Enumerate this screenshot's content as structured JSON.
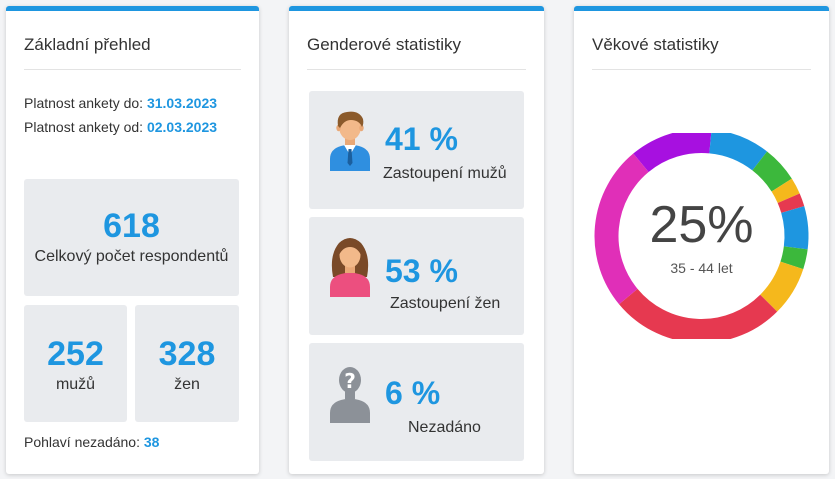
{
  "overview": {
    "title": "Základní přehled",
    "valid_to_label": "Platnost ankety do: ",
    "valid_to_value": "31.03.2023",
    "valid_from_label": "Platnost ankety od: ",
    "valid_from_value": "02.03.2023",
    "total_value": "618",
    "total_label": "Celkový počet respondentů",
    "men_value": "252",
    "men_label": "mužů",
    "women_value": "328",
    "women_label": "žen",
    "unspecified_label": "Pohlaví nezadáno: ",
    "unspecified_value": "38"
  },
  "gender": {
    "title": "Genderové statistiky",
    "men_pct": "41 %",
    "men_label": "Zastoupení mužů",
    "women_pct": "53 %",
    "women_label": "Zastoupení žen",
    "none_pct": "6 %",
    "none_label": "Nezadáno",
    "icons": [
      "man-avatar-icon",
      "woman-avatar-icon",
      "unknown-person-icon"
    ]
  },
  "age": {
    "title": "Věkové statistiky",
    "highlight_pct": "25%",
    "highlight_label": "35 - 44 let",
    "segments": [
      {
        "color": "#a710e0",
        "fraction": 0.125
      },
      {
        "color": "#1e96e0",
        "fraction": 0.09
      },
      {
        "color": "#3cb83c",
        "fraction": 0.055
      },
      {
        "color": "#f5b81c",
        "fraction": 0.025
      },
      {
        "color": "#e63950",
        "fraction": 0.02
      },
      {
        "color": "#1e96e0",
        "fraction": 0.065
      },
      {
        "color": "#3cb83c",
        "fraction": 0.03
      },
      {
        "color": "#f5b81c",
        "fraction": 0.075
      },
      {
        "color": "#e63950",
        "fraction": 0.265
      },
      {
        "color": "#e02fb8",
        "fraction": 0.25
      }
    ]
  },
  "colors": {
    "accent": "#1e96e0",
    "box_bg": "#e9ebee"
  }
}
